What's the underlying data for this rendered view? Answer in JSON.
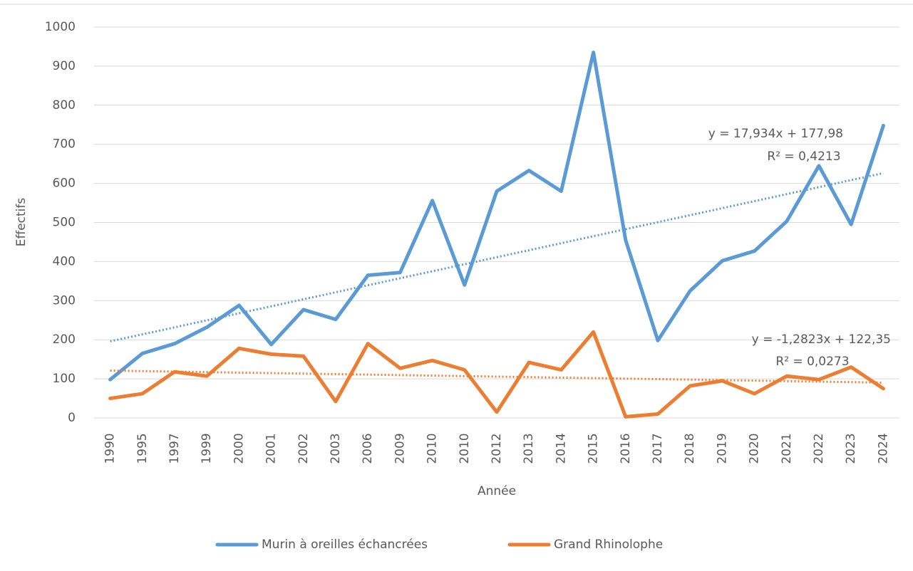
{
  "chart_data": {
    "type": "line",
    "x_label": "Année",
    "y_label": "Effectifs",
    "categories": [
      "1990",
      "1995",
      "1997",
      "1999",
      "2000",
      "2001",
      "2002",
      "2003",
      "2006",
      "2009",
      "2010",
      "2010",
      "2012",
      "2013",
      "2014",
      "2015",
      "2016",
      "2017",
      "2018",
      "2019",
      "2020",
      "2021",
      "2022",
      "2023",
      "2024"
    ],
    "series": [
      {
        "name": "Murin à oreilles échancrées",
        "color": "#5b9bd5",
        "values": [
          98,
          165,
          190,
          232,
          288,
          188,
          277,
          252,
          365,
          372,
          556,
          340,
          580,
          633,
          580,
          935,
          455,
          198,
          325,
          402,
          427,
          503,
          645,
          495,
          748
        ],
        "trend": {
          "slope": 17.934,
          "intercept": 177.98,
          "equation": "y = 17,934x + 177,98",
          "r2": 0.4213,
          "r2_label": "R² = 0,4213"
        }
      },
      {
        "name": "Grand Rhinolophe",
        "color": "#ed7d31",
        "values": [
          50,
          62,
          118,
          107,
          178,
          163,
          158,
          42,
          190,
          127,
          147,
          123,
          15,
          142,
          123,
          220,
          3,
          10,
          82,
          95,
          62,
          107,
          98,
          130,
          75
        ],
        "trend": {
          "slope": -1.2823,
          "intercept": 122.35,
          "equation": "y = -1,2823x + 122,35",
          "r2": 0.0273,
          "r2_label": "R² = 0,0273"
        }
      }
    ],
    "ylim": [
      0,
      1000
    ],
    "yticks": [
      0,
      100,
      200,
      300,
      400,
      500,
      600,
      700,
      800,
      900,
      1000
    ],
    "grid": true,
    "legend": "bottom"
  }
}
